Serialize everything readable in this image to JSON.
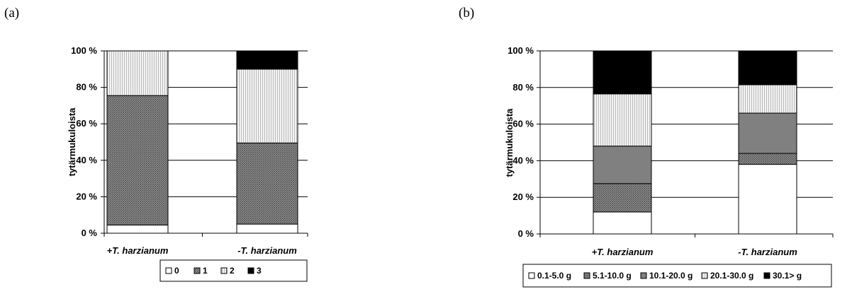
{
  "chart_data": [
    {
      "type": "bar",
      "stacked": true,
      "percent": true,
      "panel_label": "(a)",
      "categories": [
        "+T. harzianum",
        "-T. harzianum"
      ],
      "ylabel": "tytärmukuloista",
      "ylim": [
        0,
        100
      ],
      "yticks": [
        "0 %",
        "20 %",
        "40 %",
        "60 %",
        "80 %",
        "100 %"
      ],
      "grid": true,
      "legend_position": "bottom",
      "series": [
        {
          "name": "0",
          "values": [
            4.5,
            5
          ],
          "fill": "#ffffff",
          "pattern": "none"
        },
        {
          "name": "1",
          "values": [
            71,
            44.5
          ],
          "fill": "#909090",
          "pattern": "dense"
        },
        {
          "name": "2",
          "values": [
            24.5,
            40.5
          ],
          "fill": "#d8d8d8",
          "pattern": "light"
        },
        {
          "name": "3",
          "values": [
            0,
            10
          ],
          "fill": "#000000",
          "pattern": "none"
        }
      ]
    },
    {
      "type": "bar",
      "stacked": true,
      "percent": true,
      "panel_label": "(b)",
      "categories": [
        "+T. harzianum",
        "-T. harzianum"
      ],
      "ylabel": "tytärmukuloista",
      "ylim": [
        0,
        100
      ],
      "yticks": [
        "0 %",
        "20 %",
        "40 %",
        "60 %",
        "80 %",
        "100 %"
      ],
      "grid": true,
      "legend_position": "bottom",
      "series": [
        {
          "name": "0.1-5.0 g",
          "values": [
            12,
            38
          ],
          "fill": "#ffffff",
          "pattern": "none"
        },
        {
          "name": "5.1-10.0 g",
          "values": [
            15.5,
            6
          ],
          "fill": "#a8a8a8",
          "pattern": "dense"
        },
        {
          "name": "10.1-20.0 g",
          "values": [
            20.5,
            22
          ],
          "fill": "#808080",
          "pattern": "none"
        },
        {
          "name": "20.1-30.0 g",
          "values": [
            28.5,
            15.5
          ],
          "fill": "#d8d8d8",
          "pattern": "light"
        },
        {
          "name": "30.1> g",
          "values": [
            23.5,
            18.5
          ],
          "fill": "#000000",
          "pattern": "none"
        }
      ]
    }
  ]
}
